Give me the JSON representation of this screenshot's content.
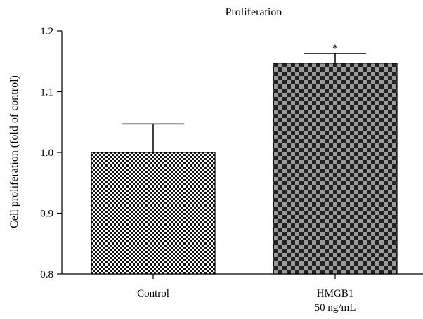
{
  "chart_data": {
    "type": "bar",
    "title": "Proliferation",
    "xlabel": "",
    "ylabel": "Cell proliferation (fold of control)",
    "ylim": [
      0.8,
      1.2
    ],
    "yticks": [
      "0.8",
      "0.9",
      "1.0",
      "1.1",
      "1.2"
    ],
    "categories": [
      "Control",
      "HMGB1|50 ng/mL"
    ],
    "values": [
      1.0,
      1.147
    ],
    "errors": [
      0.047,
      0.016
    ],
    "annotations": [
      "",
      "*"
    ],
    "patterns": [
      "fine-checker",
      "coarse-checker"
    ],
    "grid": false
  }
}
